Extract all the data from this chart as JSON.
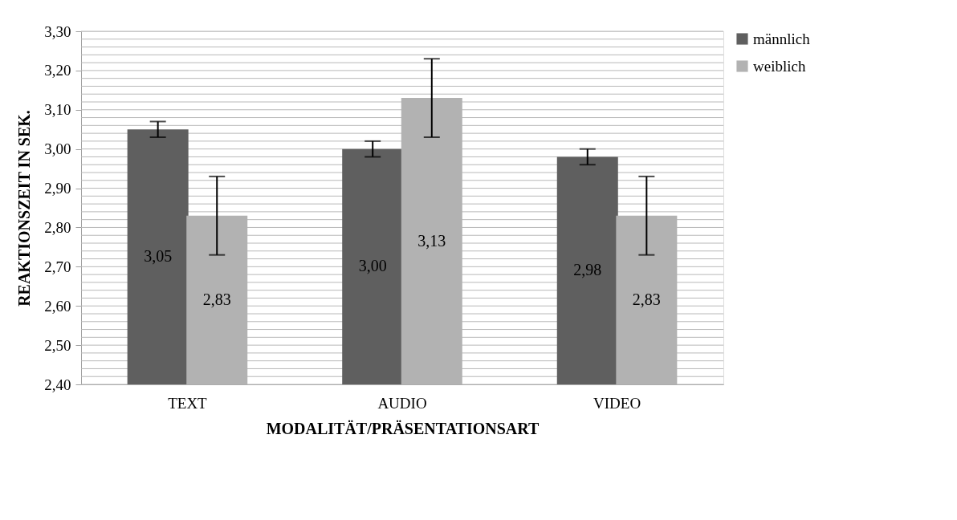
{
  "chart_data": {
    "type": "bar",
    "xlabel": "MODALITÄT/PRÄSENTATIONSART",
    "ylabel": "REAKTIONSZEIT IN SEK.",
    "categories": [
      "TEXT",
      "AUDIO",
      "VIDEO"
    ],
    "series": [
      {
        "name": "männlich",
        "color": "#5f5f5f",
        "values": [
          3.05,
          3.0,
          2.98
        ],
        "errors": [
          0.02,
          0.02,
          0.02
        ],
        "value_labels": [
          "3,05",
          "3,00",
          "2,98"
        ]
      },
      {
        "name": "weiblich",
        "color": "#b2b2b2",
        "values": [
          2.83,
          3.13,
          2.83
        ],
        "errors": [
          0.1,
          0.1,
          0.1
        ],
        "value_labels": [
          "2,83",
          "3,13",
          "2,83"
        ]
      }
    ],
    "ylim": [
      2.4,
      3.3
    ],
    "yticks": [
      {
        "value": 2.4,
        "label": "2,40"
      },
      {
        "value": 2.42,
        "label": null
      },
      {
        "value": 2.44,
        "label": null
      },
      {
        "value": 2.46,
        "label": null
      },
      {
        "value": 2.48,
        "label": null
      },
      {
        "value": 2.5,
        "label": "2,50"
      },
      {
        "value": 2.52,
        "label": null
      },
      {
        "value": 2.54,
        "label": null
      },
      {
        "value": 2.56,
        "label": null
      },
      {
        "value": 2.58,
        "label": null
      },
      {
        "value": 2.6,
        "label": "2,60"
      },
      {
        "value": 2.62,
        "label": null
      },
      {
        "value": 2.64,
        "label": null
      },
      {
        "value": 2.66,
        "label": null
      },
      {
        "value": 2.68,
        "label": null
      },
      {
        "value": 2.7,
        "label": "2,70"
      },
      {
        "value": 2.72,
        "label": null
      },
      {
        "value": 2.74,
        "label": null
      },
      {
        "value": 2.76,
        "label": null
      },
      {
        "value": 2.78,
        "label": null
      },
      {
        "value": 2.8,
        "label": "2,80"
      },
      {
        "value": 2.82,
        "label": null
      },
      {
        "value": 2.84,
        "label": null
      },
      {
        "value": 2.86,
        "label": null
      },
      {
        "value": 2.88,
        "label": null
      },
      {
        "value": 2.9,
        "label": "2,90"
      },
      {
        "value": 2.92,
        "label": null
      },
      {
        "value": 2.94,
        "label": null
      },
      {
        "value": 2.96,
        "label": null
      },
      {
        "value": 2.98,
        "label": null
      },
      {
        "value": 3.0,
        "label": "3,00"
      },
      {
        "value": 3.02,
        "label": null
      },
      {
        "value": 3.04,
        "label": null
      },
      {
        "value": 3.06,
        "label": null
      },
      {
        "value": 3.08,
        "label": null
      },
      {
        "value": 3.1,
        "label": "3,10"
      },
      {
        "value": 3.12,
        "label": null
      },
      {
        "value": 3.14,
        "label": null
      },
      {
        "value": 3.16,
        "label": null
      },
      {
        "value": 3.18,
        "label": null
      },
      {
        "value": 3.2,
        "label": "3,20"
      },
      {
        "value": 3.22,
        "label": null
      },
      {
        "value": 3.24,
        "label": null
      },
      {
        "value": 3.26,
        "label": null
      },
      {
        "value": 3.28,
        "label": null
      },
      {
        "value": 3.3,
        "label": "3,30"
      }
    ],
    "grid": "y",
    "legend": "right"
  }
}
